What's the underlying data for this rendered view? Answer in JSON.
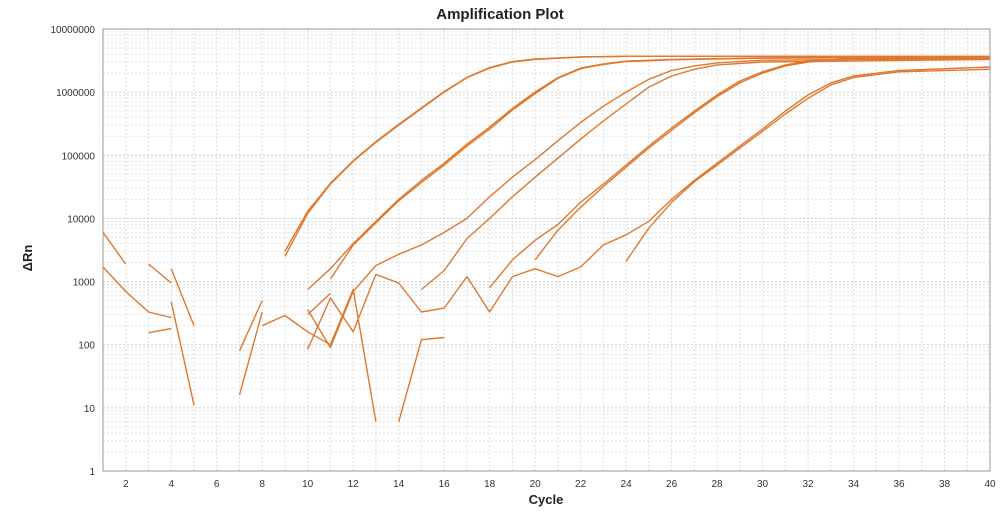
{
  "chart_data": {
    "type": "line",
    "title": "Amplification Plot",
    "xlabel": "Cycle",
    "ylabel": "ΔRn",
    "xlim": [
      1,
      40
    ],
    "ylim": [
      1,
      10000000
    ],
    "yscale": "log",
    "grid": true,
    "line_color": "#e0782e",
    "x_ticks": [
      2,
      4,
      6,
      8,
      10,
      12,
      14,
      16,
      18,
      20,
      22,
      24,
      26,
      28,
      30,
      32,
      34,
      36,
      38,
      40
    ],
    "y_ticks": [
      1,
      10,
      100,
      1000,
      10000,
      100000,
      1000000,
      10000000
    ],
    "y_tick_labels": [
      "1",
      "10",
      "100",
      "1000",
      "10000",
      "100000",
      "1000000",
      "10000000"
    ],
    "series": [
      {
        "x": [
          9,
          10,
          11,
          12,
          13,
          14,
          15,
          16,
          17,
          18,
          19,
          20,
          22,
          24,
          30,
          40
        ],
        "y": [
          2500,
          12000,
          35000,
          80000,
          160000,
          300000,
          550000,
          1000000,
          1700000,
          2400000,
          3000000,
          3300000,
          3600000,
          3700000,
          3700000,
          3700000
        ]
      },
      {
        "x": [
          9,
          10,
          11,
          12,
          13,
          14,
          15,
          16,
          17,
          18,
          19,
          20,
          22,
          24,
          30,
          40
        ],
        "y": [
          3000,
          13000,
          36000,
          82000,
          165000,
          310000,
          560000,
          1020000,
          1720000,
          2450000,
          3050000,
          3350000,
          3620000,
          3700000,
          3700000,
          3650000
        ]
      },
      {
        "x": [
          10,
          11,
          12,
          13,
          14,
          15,
          16,
          17,
          18,
          19,
          20,
          21,
          22,
          23,
          24,
          26,
          30,
          40
        ],
        "y": [
          750,
          1600,
          4000,
          9000,
          20000,
          40000,
          75000,
          150000,
          280000,
          550000,
          1000000,
          1700000,
          2400000,
          2800000,
          3100000,
          3300000,
          3500000,
          3600000
        ]
      },
      {
        "x": [
          11,
          12,
          13,
          14,
          15,
          16,
          17,
          18,
          19,
          20,
          21,
          22,
          23,
          24,
          26,
          30,
          40
        ],
        "y": [
          1100,
          3800,
          8500,
          19000,
          37000,
          70000,
          140000,
          260000,
          520000,
          950000,
          1650000,
          2350000,
          2750000,
          3050000,
          3250000,
          3450000,
          3550000
        ]
      },
      {
        "x": [
          12,
          13,
          14,
          15,
          16,
          17,
          18,
          19,
          20,
          21,
          22,
          23,
          24,
          25,
          26,
          27,
          28,
          30,
          40
        ],
        "y": [
          700,
          1800,
          2700,
          3800,
          6000,
          10000,
          22000,
          45000,
          85000,
          170000,
          330000,
          600000,
          1000000,
          1600000,
          2200000,
          2600000,
          2900000,
          3200000,
          3400000
        ]
      },
      {
        "x": [
          15,
          16,
          17,
          18,
          19,
          20,
          21,
          22,
          23,
          24,
          25,
          26,
          27,
          28,
          30,
          40
        ],
        "y": [
          750,
          1500,
          4800,
          10000,
          22000,
          45000,
          90000,
          180000,
          350000,
          650000,
          1200000,
          1800000,
          2300000,
          2700000,
          3000000,
          3300000
        ]
      },
      {
        "x": [
          18,
          19,
          20,
          21,
          22,
          23,
          24,
          25,
          26,
          27,
          28,
          29,
          30,
          31,
          32,
          34,
          40
        ],
        "y": [
          800,
          2200,
          4500,
          8000,
          18000,
          35000,
          70000,
          140000,
          270000,
          500000,
          900000,
          1500000,
          2100000,
          2700000,
          3100000,
          3400000,
          3600000
        ]
      },
      {
        "x": [
          20,
          21,
          22,
          23,
          24,
          25,
          26,
          27,
          28,
          29,
          30,
          31,
          32,
          34,
          40
        ],
        "y": [
          2200,
          6500,
          15000,
          32000,
          65000,
          130000,
          250000,
          470000,
          850000,
          1400000,
          2000000,
          2600000,
          3000000,
          3350000,
          3550000
        ]
      },
      {
        "x": [
          13,
          14,
          15,
          16,
          17,
          18,
          19,
          20,
          21,
          22,
          23,
          24,
          25,
          26,
          27,
          28,
          29,
          30,
          31,
          32,
          33,
          34,
          36,
          40
        ],
        "y": [
          1300,
          950,
          330,
          380,
          1200,
          330,
          1200,
          1600,
          1200,
          1700,
          3800,
          5500,
          9000,
          20000,
          40000,
          75000,
          140000,
          260000,
          500000,
          900000,
          1400000,
          1800000,
          2200000,
          2500000
        ]
      },
      {
        "x": [
          24,
          25,
          26,
          27,
          28,
          29,
          30,
          31,
          32,
          33,
          34,
          36,
          40
        ],
        "y": [
          2100,
          7000,
          18000,
          38000,
          70000,
          130000,
          240000,
          450000,
          800000,
          1300000,
          1700000,
          2100000,
          2300000
        ]
      },
      {
        "x": [
          1,
          2
        ],
        "y": [
          6000,
          1900
        ]
      },
      {
        "x": [
          1,
          2,
          3,
          4
        ],
        "y": [
          1700,
          700,
          330,
          270
        ]
      },
      {
        "x": [
          3,
          4
        ],
        "y": [
          1900,
          950
        ]
      },
      {
        "x": [
          3,
          4
        ],
        "y": [
          155,
          180
        ]
      },
      {
        "x": [
          4,
          5
        ],
        "y": [
          1600,
          200
        ]
      },
      {
        "x": [
          4,
          5
        ],
        "y": [
          480,
          11
        ]
      },
      {
        "x": [
          7,
          8
        ],
        "y": [
          80,
          500
        ]
      },
      {
        "x": [
          7,
          8
        ],
        "y": [
          16,
          330
        ]
      },
      {
        "x": [
          8,
          9,
          10,
          11,
          12,
          13
        ],
        "y": [
          200,
          290,
          160,
          100,
          750,
          6
        ]
      },
      {
        "x": [
          10,
          11,
          12
        ],
        "y": [
          360,
          90,
          700
        ]
      },
      {
        "x": [
          10,
          11,
          12,
          13
        ],
        "y": [
          85,
          550,
          160,
          1300
        ]
      },
      {
        "x": [
          10,
          11
        ],
        "y": [
          300,
          650
        ]
      },
      {
        "x": [
          14,
          15,
          16
        ],
        "y": [
          6,
          120,
          130
        ]
      }
    ]
  }
}
